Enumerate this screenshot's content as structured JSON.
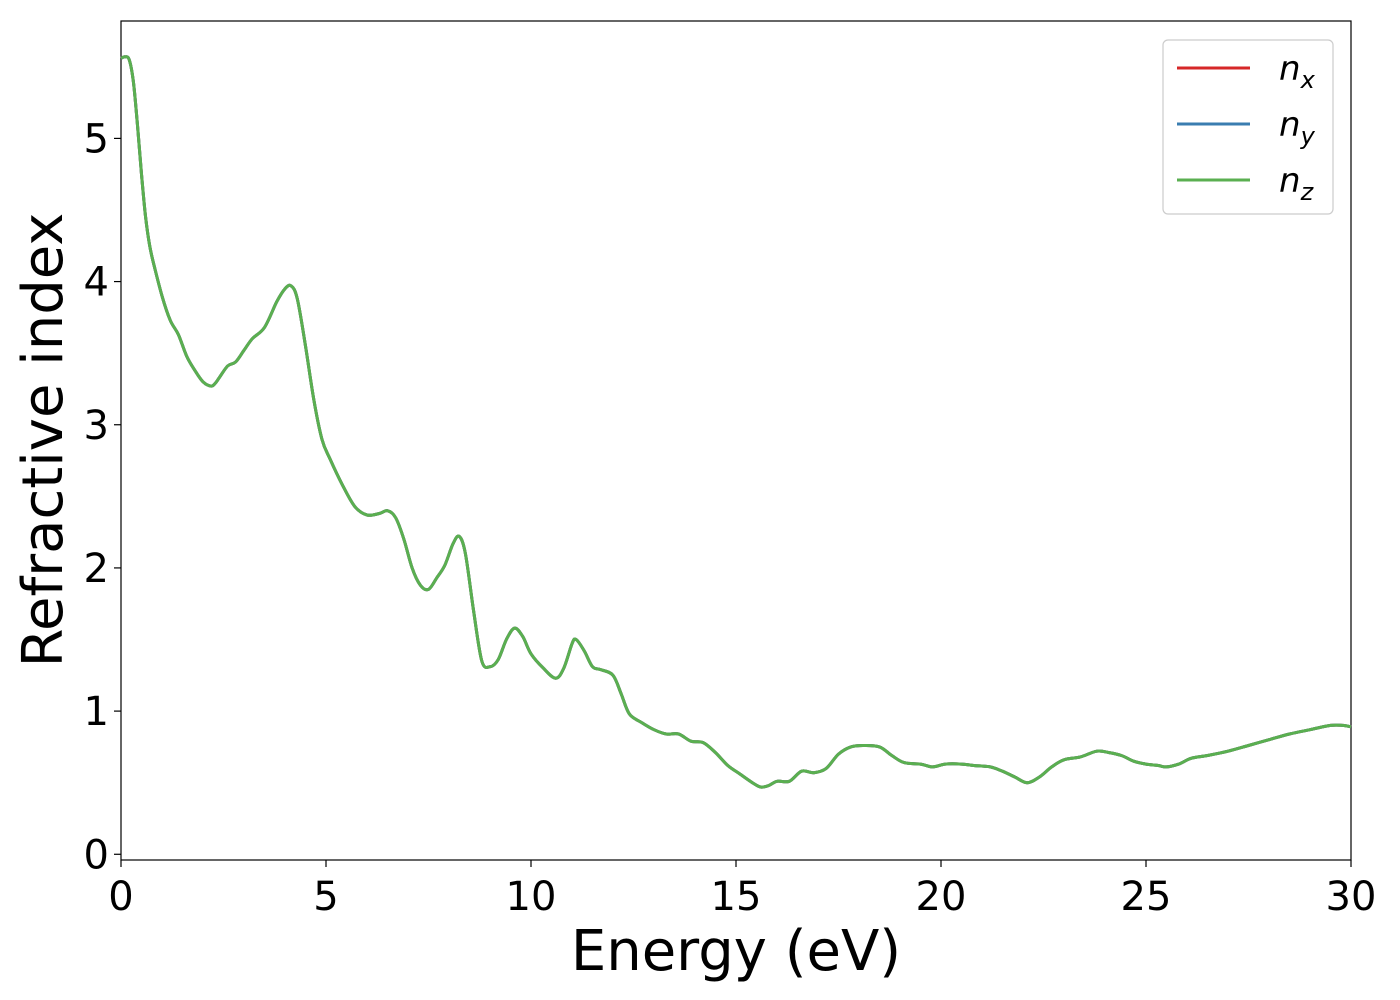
{
  "chart_data": {
    "type": "line",
    "xlabel": "Energy (eV)",
    "ylabel": "Refractive index",
    "xlim": [
      0,
      30
    ],
    "ylim": [
      -0.04,
      5.82
    ],
    "xticks": [
      0,
      5,
      10,
      15,
      20,
      25,
      30
    ],
    "xtick_labels": [
      "0",
      "5",
      "10",
      "15",
      "20",
      "25",
      "30"
    ],
    "yticks": [
      0,
      1,
      2,
      3,
      4,
      5
    ],
    "ytick_labels": [
      "0",
      "1",
      "2",
      "3",
      "4",
      "5"
    ],
    "grid": false,
    "legend_position": "top-right",
    "series": [
      {
        "name": "n_x",
        "label_base": "n",
        "label_sub": "x",
        "color": "#d62728",
        "x": [
          0,
          0.1,
          0.2,
          0.3,
          0.4,
          0.5,
          0.6,
          0.7,
          0.8,
          1.0,
          1.2,
          1.4,
          1.6,
          1.8,
          2.0,
          2.2,
          2.3,
          2.4,
          2.6,
          2.8,
          3.0,
          3.2,
          3.5,
          3.8,
          4.0,
          4.15,
          4.3,
          4.5,
          4.7,
          4.9,
          5.1,
          5.4,
          5.7,
          6.0,
          6.3,
          6.5,
          6.7,
          6.9,
          7.1,
          7.3,
          7.5,
          7.7,
          7.9,
          8.1,
          8.25,
          8.4,
          8.6,
          8.8,
          9.0,
          9.2,
          9.4,
          9.6,
          9.8,
          10.0,
          10.3,
          10.6,
          10.8,
          11.0,
          11.1,
          11.3,
          11.5,
          11.7,
          12.0,
          12.2,
          12.4,
          12.7,
          13.0,
          13.3,
          13.6,
          13.9,
          14.2,
          14.5,
          14.8,
          15.1,
          15.4,
          15.6,
          15.8,
          16.0,
          16.3,
          16.6,
          16.9,
          17.2,
          17.5,
          17.8,
          18.1,
          18.5,
          18.8,
          19.1,
          19.5,
          19.8,
          20.1,
          20.5,
          20.8,
          21.2,
          21.5,
          21.8,
          22.1,
          22.4,
          22.7,
          23.0,
          23.4,
          23.8,
          24.1,
          24.4,
          24.7,
          25.0,
          25.3,
          25.5,
          25.8,
          26.1,
          26.5,
          27.0,
          27.5,
          28.0,
          28.5,
          29.0,
          29.5,
          29.8,
          30.0
        ],
        "y": [
          5.56,
          5.57,
          5.55,
          5.4,
          5.1,
          4.75,
          4.45,
          4.25,
          4.12,
          3.9,
          3.73,
          3.63,
          3.48,
          3.38,
          3.3,
          3.27,
          3.29,
          3.33,
          3.41,
          3.44,
          3.52,
          3.6,
          3.68,
          3.86,
          3.95,
          3.97,
          3.88,
          3.55,
          3.18,
          2.9,
          2.76,
          2.58,
          2.43,
          2.37,
          2.38,
          2.4,
          2.35,
          2.2,
          2.0,
          1.88,
          1.85,
          1.93,
          2.02,
          2.17,
          2.22,
          2.1,
          1.7,
          1.35,
          1.31,
          1.36,
          1.5,
          1.58,
          1.52,
          1.4,
          1.3,
          1.23,
          1.3,
          1.47,
          1.5,
          1.42,
          1.31,
          1.29,
          1.25,
          1.12,
          0.98,
          0.92,
          0.87,
          0.84,
          0.84,
          0.79,
          0.78,
          0.71,
          0.62,
          0.56,
          0.5,
          0.47,
          0.48,
          0.51,
          0.51,
          0.58,
          0.57,
          0.6,
          0.7,
          0.75,
          0.76,
          0.75,
          0.69,
          0.64,
          0.63,
          0.61,
          0.63,
          0.63,
          0.62,
          0.61,
          0.58,
          0.54,
          0.5,
          0.54,
          0.61,
          0.66,
          0.68,
          0.72,
          0.71,
          0.69,
          0.65,
          0.63,
          0.62,
          0.61,
          0.63,
          0.67,
          0.69,
          0.72,
          0.76,
          0.8,
          0.84,
          0.87,
          0.9,
          0.9,
          0.89
        ]
      },
      {
        "name": "n_y",
        "label_base": "n",
        "label_sub": "y",
        "color": "#3a7db0",
        "x": [
          0,
          0.1,
          0.2,
          0.3,
          0.4,
          0.5,
          0.6,
          0.7,
          0.8,
          1.0,
          1.2,
          1.4,
          1.6,
          1.8,
          2.0,
          2.2,
          2.3,
          2.4,
          2.6,
          2.8,
          3.0,
          3.2,
          3.5,
          3.8,
          4.0,
          4.15,
          4.3,
          4.5,
          4.7,
          4.9,
          5.1,
          5.4,
          5.7,
          6.0,
          6.3,
          6.5,
          6.7,
          6.9,
          7.1,
          7.3,
          7.5,
          7.7,
          7.9,
          8.1,
          8.25,
          8.4,
          8.6,
          8.8,
          9.0,
          9.2,
          9.4,
          9.6,
          9.8,
          10.0,
          10.3,
          10.6,
          10.8,
          11.0,
          11.1,
          11.3,
          11.5,
          11.7,
          12.0,
          12.2,
          12.4,
          12.7,
          13.0,
          13.3,
          13.6,
          13.9,
          14.2,
          14.5,
          14.8,
          15.1,
          15.4,
          15.6,
          15.8,
          16.0,
          16.3,
          16.6,
          16.9,
          17.2,
          17.5,
          17.8,
          18.1,
          18.5,
          18.8,
          19.1,
          19.5,
          19.8,
          20.1,
          20.5,
          20.8,
          21.2,
          21.5,
          21.8,
          22.1,
          22.4,
          22.7,
          23.0,
          23.4,
          23.8,
          24.1,
          24.4,
          24.7,
          25.0,
          25.3,
          25.5,
          25.8,
          26.1,
          26.5,
          27.0,
          27.5,
          28.0,
          28.5,
          29.0,
          29.5,
          29.8,
          30.0
        ],
        "y": [
          5.56,
          5.57,
          5.55,
          5.4,
          5.1,
          4.75,
          4.45,
          4.25,
          4.12,
          3.9,
          3.73,
          3.63,
          3.48,
          3.38,
          3.3,
          3.27,
          3.29,
          3.33,
          3.41,
          3.44,
          3.52,
          3.6,
          3.68,
          3.86,
          3.95,
          3.97,
          3.88,
          3.55,
          3.18,
          2.9,
          2.76,
          2.58,
          2.43,
          2.37,
          2.38,
          2.4,
          2.35,
          2.2,
          2.0,
          1.88,
          1.85,
          1.93,
          2.02,
          2.17,
          2.22,
          2.1,
          1.7,
          1.35,
          1.31,
          1.36,
          1.5,
          1.58,
          1.52,
          1.4,
          1.3,
          1.23,
          1.3,
          1.47,
          1.5,
          1.42,
          1.31,
          1.29,
          1.25,
          1.12,
          0.98,
          0.92,
          0.87,
          0.84,
          0.84,
          0.79,
          0.78,
          0.71,
          0.62,
          0.56,
          0.5,
          0.47,
          0.48,
          0.51,
          0.51,
          0.58,
          0.57,
          0.6,
          0.7,
          0.75,
          0.76,
          0.75,
          0.69,
          0.64,
          0.63,
          0.61,
          0.63,
          0.63,
          0.62,
          0.61,
          0.58,
          0.54,
          0.5,
          0.54,
          0.61,
          0.66,
          0.68,
          0.72,
          0.71,
          0.69,
          0.65,
          0.63,
          0.62,
          0.61,
          0.63,
          0.67,
          0.69,
          0.72,
          0.76,
          0.8,
          0.84,
          0.87,
          0.9,
          0.9,
          0.89
        ]
      },
      {
        "name": "n_z",
        "label_base": "n",
        "label_sub": "z",
        "color": "#5aaf50",
        "x": [
          0,
          0.1,
          0.2,
          0.3,
          0.4,
          0.5,
          0.6,
          0.7,
          0.8,
          1.0,
          1.2,
          1.4,
          1.6,
          1.8,
          2.0,
          2.2,
          2.3,
          2.4,
          2.6,
          2.8,
          3.0,
          3.2,
          3.5,
          3.8,
          4.0,
          4.15,
          4.3,
          4.5,
          4.7,
          4.9,
          5.1,
          5.4,
          5.7,
          6.0,
          6.3,
          6.5,
          6.7,
          6.9,
          7.1,
          7.3,
          7.5,
          7.7,
          7.9,
          8.1,
          8.25,
          8.4,
          8.6,
          8.8,
          9.0,
          9.2,
          9.4,
          9.6,
          9.8,
          10.0,
          10.3,
          10.6,
          10.8,
          11.0,
          11.1,
          11.3,
          11.5,
          11.7,
          12.0,
          12.2,
          12.4,
          12.7,
          13.0,
          13.3,
          13.6,
          13.9,
          14.2,
          14.5,
          14.8,
          15.1,
          15.4,
          15.6,
          15.8,
          16.0,
          16.3,
          16.6,
          16.9,
          17.2,
          17.5,
          17.8,
          18.1,
          18.5,
          18.8,
          19.1,
          19.5,
          19.8,
          20.1,
          20.5,
          20.8,
          21.2,
          21.5,
          21.8,
          22.1,
          22.4,
          22.7,
          23.0,
          23.4,
          23.8,
          24.1,
          24.4,
          24.7,
          25.0,
          25.3,
          25.5,
          25.8,
          26.1,
          26.5,
          27.0,
          27.5,
          28.0,
          28.5,
          29.0,
          29.5,
          29.8,
          30.0
        ],
        "y": [
          5.56,
          5.57,
          5.55,
          5.4,
          5.1,
          4.75,
          4.45,
          4.25,
          4.12,
          3.9,
          3.73,
          3.63,
          3.48,
          3.38,
          3.3,
          3.27,
          3.29,
          3.33,
          3.41,
          3.44,
          3.52,
          3.6,
          3.68,
          3.86,
          3.95,
          3.97,
          3.88,
          3.55,
          3.18,
          2.9,
          2.76,
          2.58,
          2.43,
          2.37,
          2.38,
          2.4,
          2.35,
          2.2,
          2.0,
          1.88,
          1.85,
          1.93,
          2.02,
          2.17,
          2.22,
          2.1,
          1.7,
          1.35,
          1.31,
          1.36,
          1.5,
          1.58,
          1.52,
          1.4,
          1.3,
          1.23,
          1.3,
          1.47,
          1.5,
          1.42,
          1.31,
          1.29,
          1.25,
          1.12,
          0.98,
          0.92,
          0.87,
          0.84,
          0.84,
          0.79,
          0.78,
          0.71,
          0.62,
          0.56,
          0.5,
          0.47,
          0.48,
          0.51,
          0.51,
          0.58,
          0.57,
          0.6,
          0.7,
          0.75,
          0.76,
          0.75,
          0.69,
          0.64,
          0.63,
          0.61,
          0.63,
          0.63,
          0.62,
          0.61,
          0.58,
          0.54,
          0.5,
          0.54,
          0.61,
          0.66,
          0.68,
          0.72,
          0.71,
          0.69,
          0.65,
          0.63,
          0.62,
          0.61,
          0.63,
          0.67,
          0.69,
          0.72,
          0.76,
          0.8,
          0.84,
          0.87,
          0.9,
          0.9,
          0.89
        ]
      }
    ]
  }
}
